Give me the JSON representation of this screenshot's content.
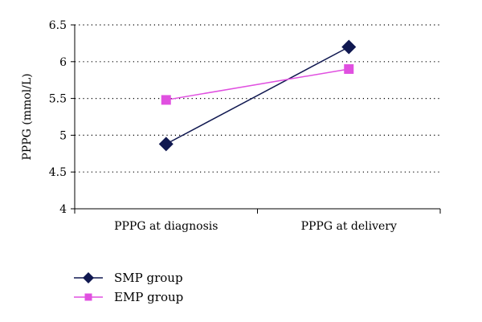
{
  "chart_data": {
    "type": "line",
    "categories": [
      "PPPG at diagnosis",
      "PPPG at delivery"
    ],
    "ylabel": "PPPG (mmol/L)",
    "xlabel": "",
    "ylim": [
      4,
      6.5
    ],
    "yticks": [
      4,
      4.5,
      5,
      5.5,
      6,
      6.5
    ],
    "ytick_labels": [
      "4",
      "4.5",
      "5",
      "5.5",
      "6",
      "6.5"
    ],
    "grid": "horizontal-dotted",
    "legend_position": "bottom-left",
    "series": [
      {
        "name": "SMP group",
        "values": [
          4.88,
          6.2
        ],
        "color": "#101850",
        "marker": "diamond"
      },
      {
        "name": "EMP group",
        "values": [
          5.48,
          5.9
        ],
        "color": "#e050e0",
        "marker": "square"
      }
    ]
  }
}
